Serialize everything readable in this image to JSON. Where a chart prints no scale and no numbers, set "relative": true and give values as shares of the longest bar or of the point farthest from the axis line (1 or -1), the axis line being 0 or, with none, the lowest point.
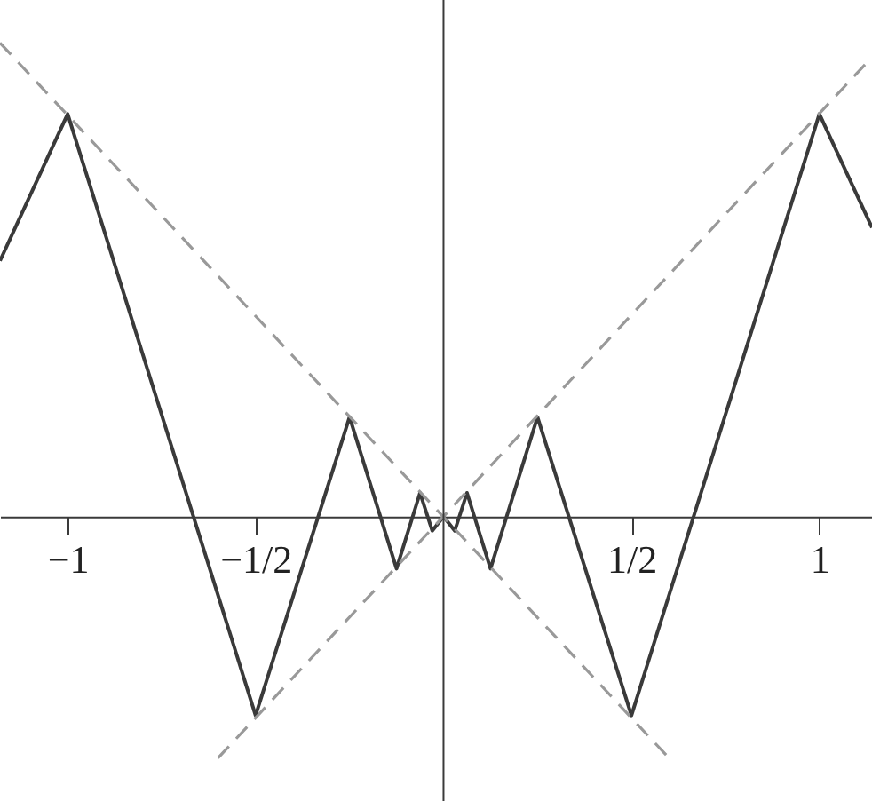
{
  "chart_data": {
    "type": "line",
    "relative": true,
    "grid": false,
    "tick_labels": "x",
    "xlim": [
      -1.18,
      1.14
    ],
    "xticks": [
      {
        "value": -1,
        "label": "−1"
      },
      {
        "value": -0.5,
        "label": "−1/2"
      },
      {
        "value": 0.5,
        "label": "1/2"
      },
      {
        "value": 1,
        "label": "1"
      }
    ],
    "series": [
      {
        "color": "#3a3a3a",
        "line_style": "solid",
        "x": [
          -1.18,
          -1,
          -0.5,
          -0.25,
          -0.125,
          -0.0625,
          -0.03,
          0,
          0.03,
          0.0625,
          0.125,
          0.25,
          0.5,
          1,
          1.14
        ],
        "values": [
          0.54,
          0.85,
          -0.42,
          0.21,
          -0.11,
          0.05,
          -0.03,
          0,
          -0.03,
          0.05,
          -0.11,
          0.21,
          -0.42,
          0.85,
          0.61
        ]
      },
      {
        "color": "#999999",
        "line_style": "dashed",
        "x": [
          -1.18,
          0.6
        ],
        "values": [
          1,
          -0.51
        ]
      },
      {
        "color": "#999999",
        "line_style": "dashed",
        "x": [
          -0.6,
          1.14
        ],
        "values": [
          -0.51,
          0.97
        ]
      }
    ],
    "ref_lines": [
      {
        "axis": "x",
        "value": 0,
        "color": "#3a3a3a"
      }
    ]
  }
}
